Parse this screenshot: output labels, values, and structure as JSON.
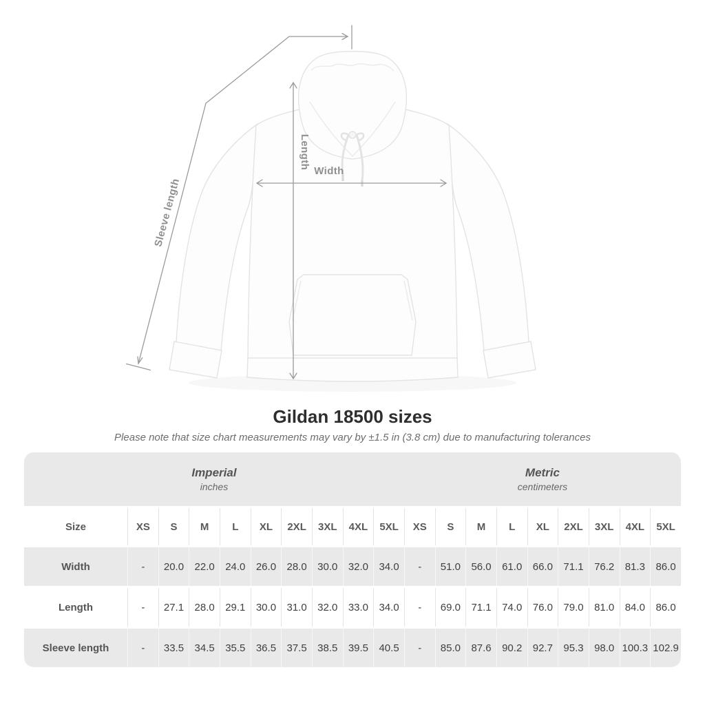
{
  "diagram": {
    "width_label": "Width",
    "length_label": "Length",
    "sleeve_label": "Sleeve length"
  },
  "heading": {
    "title": "Gildan 18500 sizes",
    "note": "Please note that size chart measurements may vary by ±1.5 in (3.8 cm) due to manufacturing tolerances"
  },
  "colors": {
    "band_gray": "#e9e9e9",
    "measure_line": "#9a9a9a",
    "label_gray": "#8f8f8f"
  },
  "chart_data": {
    "type": "table",
    "size_header": "Size",
    "unit_groups": [
      {
        "label": "Imperial",
        "sublabel": "inches"
      },
      {
        "label": "Metric",
        "sublabel": "centimeters"
      }
    ],
    "sizes": [
      "XS",
      "S",
      "M",
      "L",
      "XL",
      "2XL",
      "3XL",
      "4XL",
      "5XL"
    ],
    "rows": [
      {
        "label": "Width",
        "imperial": [
          "-",
          "20.0",
          "22.0",
          "24.0",
          "26.0",
          "28.0",
          "30.0",
          "32.0",
          "34.0"
        ],
        "metric": [
          "-",
          "51.0",
          "56.0",
          "61.0",
          "66.0",
          "71.1",
          "76.2",
          "81.3",
          "86.0"
        ]
      },
      {
        "label": "Length",
        "imperial": [
          "-",
          "27.1",
          "28.0",
          "29.1",
          "30.0",
          "31.0",
          "32.0",
          "33.0",
          "34.0"
        ],
        "metric": [
          "-",
          "69.0",
          "71.1",
          "74.0",
          "76.0",
          "79.0",
          "81.0",
          "84.0",
          "86.0"
        ]
      },
      {
        "label": "Sleeve length",
        "imperial": [
          "-",
          "33.5",
          "34.5",
          "35.5",
          "36.5",
          "37.5",
          "38.5",
          "39.5",
          "40.5"
        ],
        "metric": [
          "-",
          "85.0",
          "87.6",
          "90.2",
          "92.7",
          "95.3",
          "98.0",
          "100.3",
          "102.9"
        ]
      }
    ]
  }
}
